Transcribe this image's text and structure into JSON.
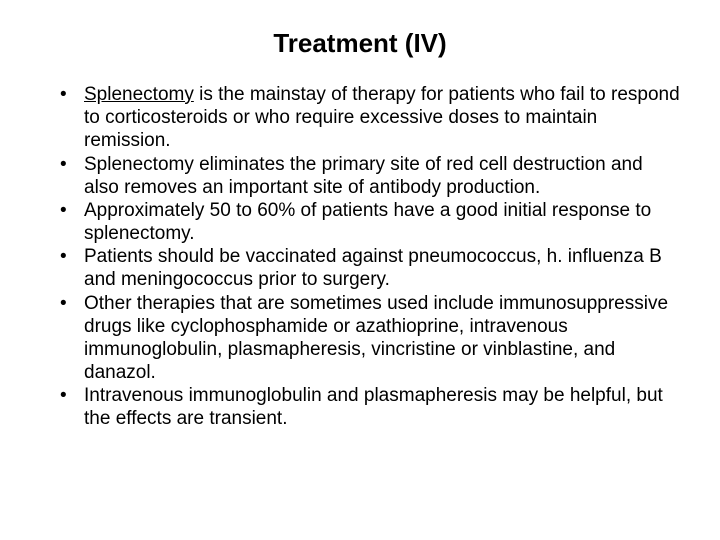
{
  "title": "Treatment (IV)",
  "bullets": [
    {
      "underlined_lead": "Splenectomy",
      "rest": " is the mainstay of therapy for patients who fail to respond to corticosteroids or who require excessive doses to maintain remission."
    },
    {
      "underlined_lead": "",
      "rest": "Splenectomy eliminates the primary site of red cell destruction and also removes an important site of antibody production."
    },
    {
      "underlined_lead": "",
      "rest": "Approximately 50 to 60% of patients have a good initial response to splenectomy."
    },
    {
      "underlined_lead": "",
      "rest": "Patients should be vaccinated against pneumococcus, h. influenza B and meningococcus prior to surgery."
    },
    {
      "underlined_lead": "",
      "rest": "Other therapies that are sometimes used include immunosuppressive drugs like cyclophosphamide or azathioprine, intravenous immunoglobulin, plasmapheresis, vincristine or vinblastine, and danazol."
    },
    {
      "underlined_lead": "",
      "rest": "Intravenous immunoglobulin and plasmapheresis may be helpful, but the effects are transient."
    }
  ]
}
